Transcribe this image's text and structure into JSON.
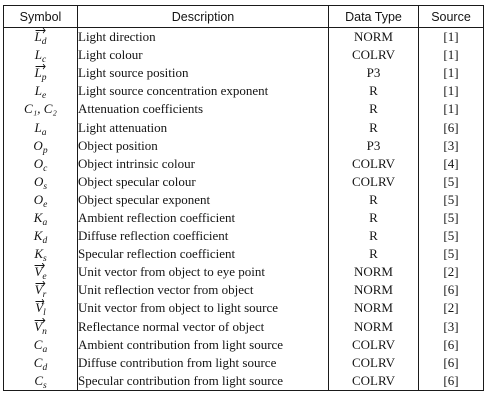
{
  "table": {
    "headers": [
      "Symbol",
      "Description",
      "Data Type",
      "Source"
    ],
    "rows": [
      {
        "base": "L",
        "sub": "d",
        "vector": true,
        "description": "Light direction",
        "type": "NORM",
        "source": "[1]"
      },
      {
        "base": "L",
        "sub": "c",
        "vector": false,
        "description": "Light colour",
        "type": "COLRV",
        "source": "[1]"
      },
      {
        "base": "L",
        "sub": "p",
        "vector": true,
        "description": "Light source position",
        "type": "P3",
        "source": "[1]"
      },
      {
        "base": "L",
        "sub": "e",
        "vector": false,
        "description": "Light source concentration exponent",
        "type": "R",
        "source": "[1]"
      },
      {
        "base": "C₁, C₂",
        "sub": "",
        "vector": false,
        "description": "Attenuation coefficients",
        "type": "R",
        "source": "[1]"
      },
      {
        "base": "L",
        "sub": "a",
        "vector": false,
        "description": "Light attenuation",
        "type": "R",
        "source": "[6]"
      },
      {
        "base": "O",
        "sub": "p",
        "vector": false,
        "description": "Object position",
        "type": "P3",
        "source": "[3]"
      },
      {
        "base": "O",
        "sub": "c",
        "vector": false,
        "description": "Object intrinsic colour",
        "type": "COLRV",
        "source": "[4]"
      },
      {
        "base": "O",
        "sub": "s",
        "vector": false,
        "description": "Object specular colour",
        "type": "COLRV",
        "source": "[5]"
      },
      {
        "base": "O",
        "sub": "e",
        "vector": false,
        "description": "Object specular exponent",
        "type": "R",
        "source": "[5]"
      },
      {
        "base": "K",
        "sub": "a",
        "vector": false,
        "description": "Ambient reflection coefficient",
        "type": "R",
        "source": "[5]"
      },
      {
        "base": "K",
        "sub": "d",
        "vector": false,
        "description": "Diffuse reflection coefficient",
        "type": "R",
        "source": "[5]"
      },
      {
        "base": "K",
        "sub": "s",
        "vector": false,
        "description": "Specular reflection coefficient",
        "type": "R",
        "source": "[5]"
      },
      {
        "base": "V",
        "sub": "e",
        "vector": true,
        "description": "Unit vector from object to eye point",
        "type": "NORM",
        "source": "[2]"
      },
      {
        "base": "V",
        "sub": "r",
        "vector": true,
        "description": "Unit reflection vector from object",
        "type": "NORM",
        "source": "[6]"
      },
      {
        "base": "V",
        "sub": "l",
        "vector": true,
        "description": "Unit vector from object to light source",
        "type": "NORM",
        "source": "[2]"
      },
      {
        "base": "V",
        "sub": "n",
        "vector": true,
        "description": "Reflectance normal vector of object",
        "type": "NORM",
        "source": "[3]"
      },
      {
        "base": "C",
        "sub": "a",
        "vector": false,
        "description": "Ambient contribution from light source",
        "type": "COLRV",
        "source": "[6]"
      },
      {
        "base": "C",
        "sub": "d",
        "vector": false,
        "description": "Diffuse contribution from light source",
        "type": "COLRV",
        "source": "[6]"
      },
      {
        "base": "C",
        "sub": "s",
        "vector": false,
        "description": "Specular contribution from light source",
        "type": "COLRV",
        "source": "[6]"
      }
    ]
  }
}
